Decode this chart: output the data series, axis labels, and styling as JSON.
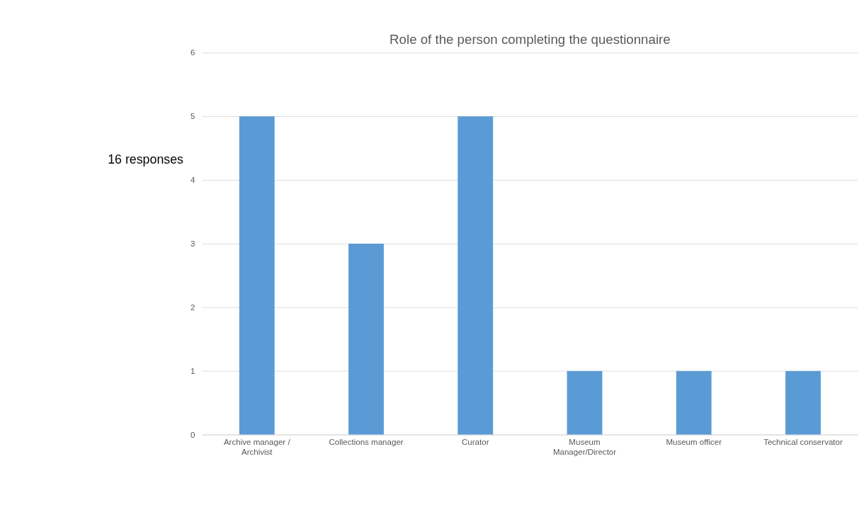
{
  "chart_data": {
    "type": "bar",
    "title": "Role of the person completing the questionnaire",
    "categories": [
      "Archive manager / Archivist",
      "Collections manager",
      "Curator",
      "Museum Manager/Director",
      "Museum officer",
      "Technical conservator"
    ],
    "values": [
      5,
      3,
      5,
      1,
      1,
      1
    ],
    "color": "#5b9bd5",
    "ylim": [
      0,
      6
    ],
    "yticks": [
      0,
      1,
      2,
      3,
      4,
      5,
      6
    ],
    "grid": "y",
    "annotations": [
      "16 responses"
    ]
  }
}
